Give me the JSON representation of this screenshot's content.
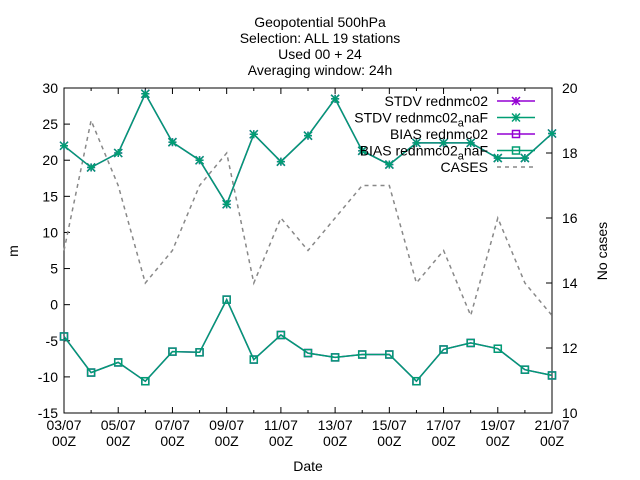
{
  "chart_data": {
    "type": "line",
    "title_lines": [
      "Geopotential 500hPa",
      "Selection: ALL      19 stations",
      "Used 00 + 24",
      "Averaging window: 24h"
    ],
    "xlabel": "Date",
    "ylabel": "m",
    "y2label": "No cases",
    "ylim": [
      -15,
      30
    ],
    "y2lim": [
      10,
      20
    ],
    "yticks": [
      "30",
      "25",
      "20",
      "15",
      "10",
      "5",
      "0",
      "-5",
      "-10",
      "-15"
    ],
    "y2ticks": [
      "20",
      "18",
      "16",
      "14",
      "12",
      "10"
    ],
    "xticks": [
      {
        "line1": "03/07",
        "line2": "00Z"
      },
      {
        "line1": "05/07",
        "line2": "00Z"
      },
      {
        "line1": "07/07",
        "line2": "00Z"
      },
      {
        "line1": "09/07",
        "line2": "00Z"
      },
      {
        "line1": "11/07",
        "line2": "00Z"
      },
      {
        "line1": "13/07",
        "line2": "00Z"
      },
      {
        "line1": "15/07",
        "line2": "00Z"
      },
      {
        "line1": "17/07",
        "line2": "00Z"
      },
      {
        "line1": "19/07",
        "line2": "00Z"
      },
      {
        "line1": "21/07",
        "line2": "00Z"
      }
    ],
    "x": [
      0,
      1,
      2,
      3,
      4,
      5,
      6,
      7,
      8,
      9,
      10,
      11,
      12,
      13,
      14,
      15,
      16,
      17,
      18
    ],
    "legend_placement": "top-right",
    "series": [
      {
        "name": "STDV rednmc02",
        "axis": "y",
        "color": "#9400d3",
        "marker": "star",
        "values": [
          22.0,
          19.0,
          21.0,
          29.2,
          22.5,
          20.0,
          13.9,
          23.6,
          19.8,
          23.4,
          28.5,
          21.3,
          19.4,
          22.4,
          22.4,
          22.4,
          20.3,
          20.3,
          23.7
        ]
      },
      {
        "name": "STDV rednmc02_{a}naF",
        "name_main": "STDV rednmc02",
        "name_sub": "a",
        "name_tail": "naF",
        "axis": "y",
        "color": "#009e73",
        "marker": "star",
        "values": [
          22.0,
          19.0,
          21.0,
          29.2,
          22.5,
          20.0,
          13.9,
          23.6,
          19.8,
          23.4,
          28.5,
          21.3,
          19.4,
          22.4,
          22.4,
          22.4,
          20.3,
          20.3,
          23.7
        ]
      },
      {
        "name": "BIAS rednmc02",
        "axis": "y",
        "color": "#9400d3",
        "marker": "square",
        "values": [
          -4.4,
          -9.4,
          -8.0,
          -10.6,
          -6.5,
          -6.6,
          0.7,
          -7.6,
          -4.2,
          -6.7,
          -7.3,
          -6.9,
          -6.9,
          -10.6,
          -6.2,
          -5.3,
          -6.1,
          -9.0,
          -9.8
        ]
      },
      {
        "name": "BIAS rednmc02_{a}naF",
        "name_main": "BIAS rednmc02",
        "name_sub": "a",
        "name_tail": "naF",
        "axis": "y",
        "color": "#009e73",
        "marker": "square",
        "values": [
          -4.4,
          -9.4,
          -8.0,
          -10.6,
          -6.5,
          -6.6,
          0.7,
          -7.6,
          -4.2,
          -6.7,
          -7.3,
          -6.9,
          -6.9,
          -10.6,
          -6.2,
          -5.3,
          -6.1,
          -9.0,
          -9.8
        ]
      },
      {
        "name": "CASES",
        "axis": "y2",
        "color": "#888888",
        "marker": "none",
        "dashed": true,
        "values": [
          15.0,
          19.0,
          17.0,
          14.0,
          15.0,
          17.0,
          18.0,
          14.0,
          16.0,
          15.0,
          16.0,
          17.0,
          17.0,
          14.0,
          15.0,
          13.0,
          16.0,
          14.0,
          13.0
        ]
      }
    ]
  }
}
